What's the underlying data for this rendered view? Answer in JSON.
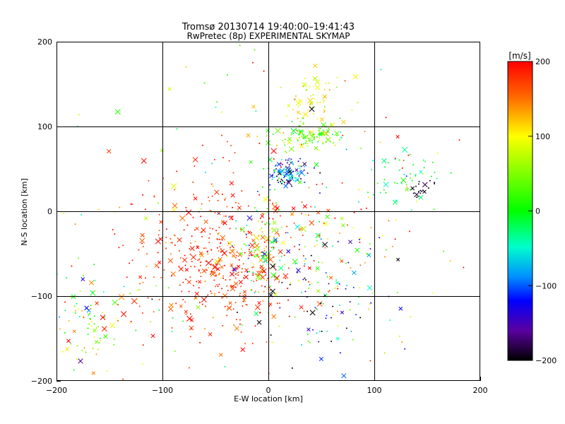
{
  "chart_data": [
    {
      "type": "scatter",
      "title": "Tromsø 20130714 19:40:00–19:41:43",
      "subtitle": "RwPretec (8p) EXPERIMENTAL SKYMAP",
      "xlabel": "E-W location [km]",
      "ylabel": "N-S location [km]",
      "xlim": [
        -200,
        200
      ],
      "ylim": [
        -200,
        200
      ],
      "xticks": [
        "-200",
        "-100",
        "0",
        "100",
        "200"
      ],
      "yticks": [
        "-200",
        "-100",
        "0",
        "100",
        "200"
      ],
      "grid": true,
      "color_by": "velocity",
      "markers": [
        "dot",
        "x"
      ],
      "clusters": [
        {
          "x": -50,
          "y": -60,
          "sx": 40,
          "sy": 45,
          "n": 420,
          "v": 175,
          "sv": 20
        },
        {
          "x": -5,
          "y": -40,
          "sx": 12,
          "sy": 25,
          "n": 90,
          "v": 60,
          "sv": 90
        },
        {
          "x": 18,
          "y": 45,
          "sx": 10,
          "sy": 9,
          "n": 120,
          "v": -100,
          "sv": 60
        },
        {
          "x": 38,
          "y": 88,
          "sx": 15,
          "sy": 7,
          "n": 110,
          "v": 40,
          "sv": 45
        },
        {
          "x": 45,
          "y": 135,
          "sx": 14,
          "sy": 15,
          "n": 60,
          "v": 100,
          "sv": 30
        },
        {
          "x": 130,
          "y": 45,
          "sx": 18,
          "sy": 20,
          "n": 45,
          "v": -20,
          "sv": 30
        },
        {
          "x": 145,
          "y": 28,
          "sx": 6,
          "sy": 6,
          "n": 18,
          "v": -190,
          "sv": 10
        },
        {
          "x": -170,
          "y": -130,
          "sx": 18,
          "sy": 30,
          "n": 90,
          "v": 50,
          "sv": 70
        },
        {
          "x": 50,
          "y": -100,
          "sx": 35,
          "sy": 40,
          "n": 100,
          "v": -120,
          "sv": 90
        },
        {
          "x": 40,
          "y": -40,
          "sx": 40,
          "sy": 40,
          "n": 90,
          "v": 80,
          "sv": 100
        },
        {
          "x": 0,
          "y": 0,
          "sx": 110,
          "sy": 100,
          "n": 220,
          "v": 100,
          "sv": 120
        }
      ]
    },
    {
      "type": "heatmap",
      "role": "colorbar",
      "title": "[m/s]",
      "range": [
        -200,
        200
      ],
      "ticks": [
        "200",
        "100",
        "0",
        "-100",
        "-200"
      ],
      "colors": [
        "#ff0000",
        "#ffff00",
        "#00ff00",
        "#0000ff",
        "#000000"
      ]
    }
  ]
}
